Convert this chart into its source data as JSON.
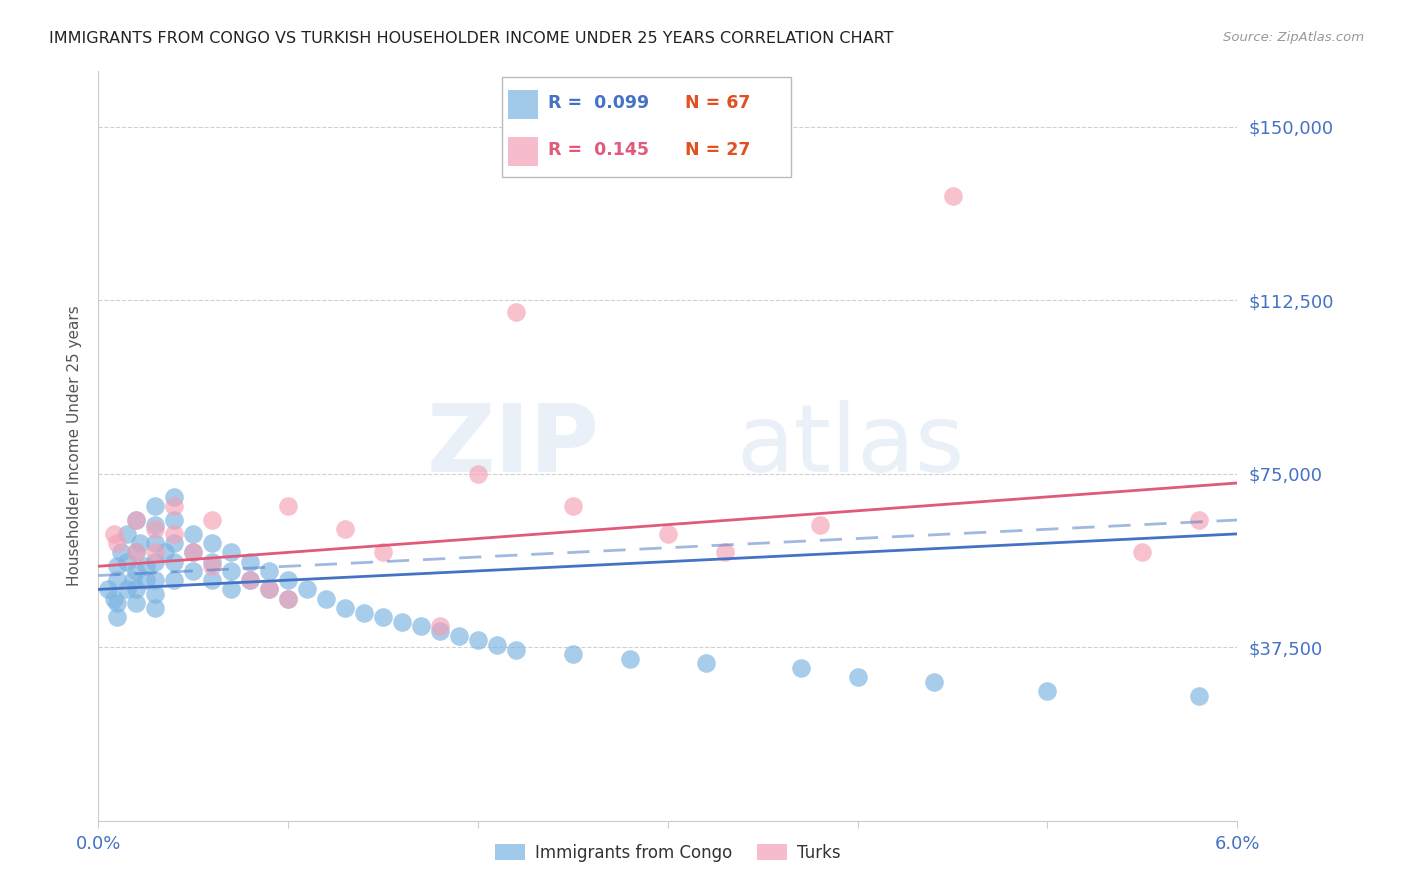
{
  "title": "IMMIGRANTS FROM CONGO VS TURKISH HOUSEHOLDER INCOME UNDER 25 YEARS CORRELATION CHART",
  "source": "Source: ZipAtlas.com",
  "ylabel": "Householder Income Under 25 years",
  "xlim": [
    0.0,
    0.06
  ],
  "ylim": [
    0,
    162000
  ],
  "yticks": [
    0,
    37500,
    75000,
    112500,
    150000
  ],
  "ytick_labels": [
    "",
    "$37,500",
    "$75,000",
    "$112,500",
    "$150,000"
  ],
  "xticks": [
    0.0,
    0.01,
    0.02,
    0.03,
    0.04,
    0.05,
    0.06
  ],
  "xtick_labels": [
    "0.0%",
    "",
    "",
    "",
    "",
    "",
    "6.0%"
  ],
  "color_congo": "#7ab3e0",
  "color_turks": "#f4a0b5",
  "color_title": "#222222",
  "color_ylabel": "#555555",
  "color_ytick_labels": "#4472c4",
  "color_xtick_labels": "#4472c4",
  "color_source": "#999999",
  "color_trend_congo": "#4472c4",
  "color_trend_turks": "#e05a7a",
  "watermark_part1": "ZIP",
  "watermark_part2": "atlas",
  "congo_x": [
    0.0005,
    0.0008,
    0.001,
    0.001,
    0.001,
    0.001,
    0.0012,
    0.0015,
    0.0015,
    0.0015,
    0.0018,
    0.002,
    0.002,
    0.002,
    0.002,
    0.002,
    0.0022,
    0.0025,
    0.0025,
    0.003,
    0.003,
    0.003,
    0.003,
    0.003,
    0.003,
    0.003,
    0.0035,
    0.004,
    0.004,
    0.004,
    0.004,
    0.004,
    0.005,
    0.005,
    0.005,
    0.006,
    0.006,
    0.006,
    0.007,
    0.007,
    0.007,
    0.008,
    0.008,
    0.009,
    0.009,
    0.01,
    0.01,
    0.011,
    0.012,
    0.013,
    0.014,
    0.015,
    0.016,
    0.017,
    0.018,
    0.019,
    0.02,
    0.021,
    0.022,
    0.025,
    0.028,
    0.032,
    0.037,
    0.04,
    0.044,
    0.05,
    0.058
  ],
  "congo_y": [
    50000,
    48000,
    55000,
    52000,
    47000,
    44000,
    58000,
    62000,
    56000,
    50000,
    52000,
    65000,
    58000,
    54000,
    50000,
    47000,
    60000,
    55000,
    52000,
    68000,
    64000,
    60000,
    56000,
    52000,
    49000,
    46000,
    58000,
    70000,
    65000,
    60000,
    56000,
    52000,
    62000,
    58000,
    54000,
    60000,
    56000,
    52000,
    58000,
    54000,
    50000,
    56000,
    52000,
    54000,
    50000,
    52000,
    48000,
    50000,
    48000,
    46000,
    45000,
    44000,
    43000,
    42000,
    41000,
    40000,
    39000,
    38000,
    37000,
    36000,
    35000,
    34000,
    33000,
    31000,
    30000,
    28000,
    27000
  ],
  "turks_x": [
    0.0008,
    0.001,
    0.002,
    0.002,
    0.003,
    0.003,
    0.004,
    0.004,
    0.005,
    0.006,
    0.006,
    0.008,
    0.009,
    0.01,
    0.01,
    0.013,
    0.015,
    0.018,
    0.02,
    0.022,
    0.025,
    0.03,
    0.033,
    0.038,
    0.045,
    0.055,
    0.058
  ],
  "turks_y": [
    62000,
    60000,
    65000,
    58000,
    63000,
    58000,
    68000,
    62000,
    58000,
    55000,
    65000,
    52000,
    50000,
    68000,
    48000,
    63000,
    58000,
    42000,
    75000,
    110000,
    68000,
    62000,
    58000,
    64000,
    135000,
    58000,
    65000
  ]
}
